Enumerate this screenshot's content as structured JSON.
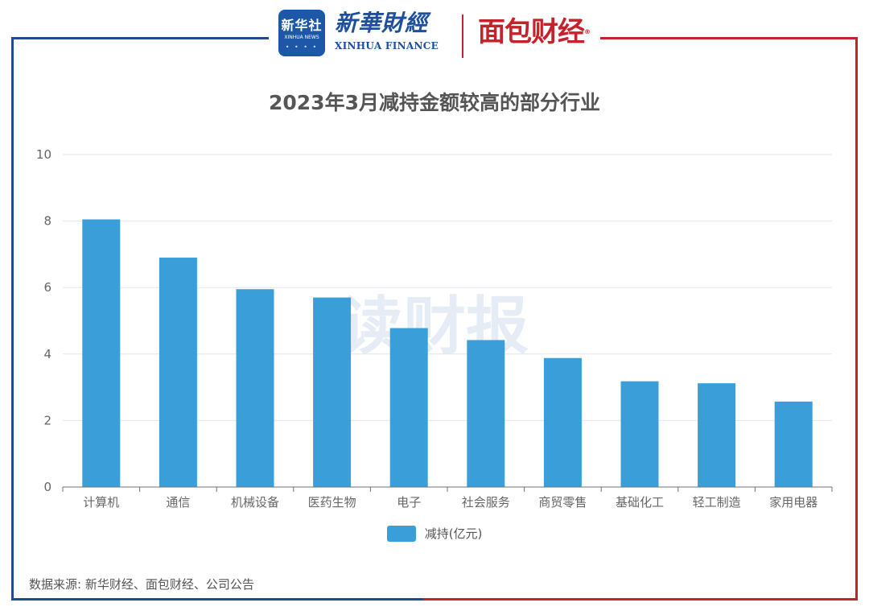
{
  "header": {
    "xinhua_badge_text": "新华社",
    "xinhua_badge_sub": "XINHUA NEWS",
    "xinhua_finance_cn": "新華財經",
    "xinhua_finance_en": "XINHUA FINANCE",
    "mianbao_text": "面包财经"
  },
  "watermark": "读财报",
  "source": "数据来源: 新华财经、面包财经、公司公告",
  "colors": {
    "bar": "#3a9fd8",
    "left_frame": "#1f4e8c",
    "right_frame": "#c4232b"
  },
  "chart_data": {
    "type": "bar",
    "title": "2023年3月减持金额较高的部分行业",
    "categories": [
      "计算机",
      "通信",
      "机械设备",
      "医药生物",
      "电子",
      "社会服务",
      "商贸零售",
      "基础化工",
      "轻工制造",
      "家用电器"
    ],
    "series": [
      {
        "name": "减持(亿元)",
        "values": [
          8.05,
          6.9,
          5.95,
          5.7,
          4.78,
          4.42,
          3.88,
          3.18,
          3.12,
          2.57
        ]
      }
    ],
    "yticks": [
      "0",
      "2",
      "4",
      "6",
      "8",
      "10"
    ],
    "ylim": [
      0,
      10
    ],
    "grid": true,
    "legend_position": "bottom"
  }
}
